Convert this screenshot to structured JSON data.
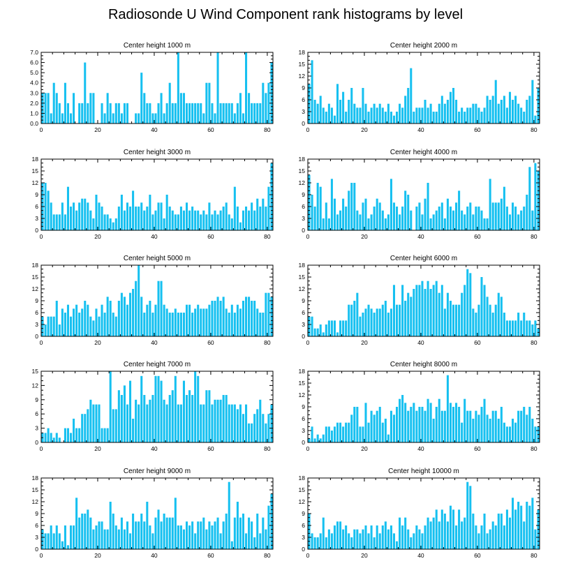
{
  "title": "Radiosonde U Wind Component rank histograms by level",
  "colors": {
    "bar": "#16c0f0",
    "axis": "#000000"
  },
  "chart_data": [
    {
      "type": "bar",
      "title": "Center height 1000 m",
      "xlim": [
        0,
        82
      ],
      "ylim": [
        0,
        7
      ],
      "xticks": [
        0,
        20,
        40,
        60,
        80
      ],
      "yticks": [
        0,
        1,
        2,
        3,
        4,
        5,
        6,
        7
      ],
      "ytick_labels": [
        "0.0",
        "1.0",
        "2.0",
        "3.0",
        "4.0",
        "5.0",
        "6.0",
        "7.0"
      ],
      "values": [
        3,
        3,
        3,
        1,
        4,
        3,
        2,
        1,
        4,
        2,
        1,
        3,
        0,
        2,
        2,
        6,
        2,
        3,
        3,
        0,
        0,
        2,
        1,
        3,
        2,
        1,
        2,
        2,
        1,
        2,
        2,
        0,
        0,
        1,
        1,
        5,
        3,
        2,
        2,
        1,
        1,
        2,
        3,
        1,
        2,
        4,
        2,
        2,
        7,
        3,
        3,
        2,
        2,
        2,
        2,
        2,
        2,
        1,
        4,
        4,
        2,
        1,
        7,
        2,
        2,
        2,
        2,
        2,
        1,
        2,
        3,
        1,
        7,
        3,
        2,
        2,
        2,
        2,
        4,
        3,
        4,
        6
      ]
    },
    {
      "type": "bar",
      "title": "Center height 2000 m",
      "xlim": [
        0,
        82
      ],
      "ylim": [
        0,
        18
      ],
      "xticks": [
        0,
        20,
        40,
        60,
        80
      ],
      "yticks": [
        0,
        3,
        6,
        9,
        12,
        15,
        18
      ],
      "ytick_labels": [
        "0",
        "3",
        "6",
        "9",
        "12",
        "15",
        "18"
      ],
      "values": [
        10,
        16,
        6,
        5,
        7,
        4,
        3,
        5,
        4,
        2,
        10,
        6,
        8,
        3,
        6,
        9,
        5,
        4,
        4,
        9,
        5,
        3,
        4,
        5,
        4,
        5,
        4,
        3,
        5,
        3,
        2,
        3,
        5,
        4,
        7,
        9,
        14,
        3,
        4,
        4,
        4,
        6,
        4,
        5,
        3,
        3,
        5,
        7,
        5,
        6,
        8,
        9,
        6,
        3,
        4,
        3,
        4,
        4,
        5,
        5,
        4,
        3,
        4,
        7,
        6,
        7,
        11,
        5,
        6,
        7,
        4,
        8,
        6,
        7,
        5,
        4,
        3,
        6,
        7,
        11,
        2,
        9
      ]
    },
    {
      "type": "bar",
      "title": "Center height 3000 m",
      "xlim": [
        0,
        82
      ],
      "ylim": [
        0,
        18
      ],
      "xticks": [
        0,
        20,
        40,
        60,
        80
      ],
      "yticks": [
        0,
        3,
        6,
        9,
        12,
        15,
        18
      ],
      "ytick_labels": [
        "0",
        "3",
        "6",
        "9",
        "12",
        "15",
        "18"
      ],
      "values": [
        12,
        12,
        10,
        7,
        4,
        4,
        4,
        7,
        4,
        11,
        6,
        7,
        5,
        7,
        8,
        8,
        7,
        5,
        3,
        9,
        7,
        6,
        4,
        4,
        3,
        2,
        3,
        6,
        9,
        5,
        7,
        6,
        10,
        6,
        6,
        7,
        5,
        6,
        9,
        4,
        5,
        7,
        7,
        3,
        9,
        6,
        5,
        4,
        4,
        6,
        5,
        7,
        5,
        6,
        5,
        5,
        4,
        5,
        4,
        7,
        4,
        5,
        4,
        5,
        6,
        7,
        4,
        3,
        11,
        6,
        2,
        5,
        6,
        5,
        7,
        5,
        8,
        6,
        8,
        6,
        11,
        17
      ]
    },
    {
      "type": "bar",
      "title": "Center height 4000 m",
      "xlim": [
        0,
        82
      ],
      "ylim": [
        0,
        18
      ],
      "xticks": [
        0,
        20,
        40,
        60,
        80
      ],
      "yticks": [
        0,
        3,
        6,
        9,
        12,
        15,
        18
      ],
      "ytick_labels": [
        "0",
        "3",
        "6",
        "9",
        "12",
        "15",
        "18"
      ],
      "values": [
        14,
        9,
        6,
        12,
        11,
        3,
        7,
        3,
        13,
        8,
        4,
        5,
        8,
        6,
        10,
        12,
        12,
        5,
        4,
        7,
        8,
        3,
        4,
        6,
        8,
        7,
        5,
        3,
        4,
        13,
        7,
        6,
        4,
        6,
        10,
        9,
        5,
        0,
        6,
        7,
        4,
        8,
        12,
        3,
        4,
        5,
        6,
        7,
        3,
        8,
        6,
        5,
        7,
        10,
        5,
        4,
        6,
        7,
        4,
        6,
        6,
        5,
        3,
        3,
        13,
        7,
        7,
        7,
        8,
        11,
        6,
        4,
        7,
        6,
        4,
        5,
        6,
        9,
        16,
        5,
        17,
        15
      ]
    },
    {
      "type": "bar",
      "title": "Center height 5000 m",
      "xlim": [
        0,
        82
      ],
      "ylim": [
        0,
        18
      ],
      "xticks": [
        0,
        20,
        40,
        60,
        80
      ],
      "yticks": [
        0,
        3,
        6,
        9,
        12,
        15,
        18
      ],
      "ytick_labels": [
        "0",
        "3",
        "6",
        "9",
        "12",
        "15",
        "18"
      ],
      "values": [
        5,
        3,
        5,
        5,
        5,
        9,
        3,
        7,
        6,
        8,
        5,
        7,
        8,
        6,
        7,
        9,
        8,
        5,
        4,
        7,
        5,
        8,
        6,
        10,
        9,
        6,
        5,
        9,
        11,
        10,
        8,
        11,
        12,
        14,
        18,
        10,
        6,
        8,
        9,
        6,
        8,
        14,
        14,
        8,
        7,
        6,
        6,
        7,
        6,
        6,
        6,
        8,
        8,
        6,
        7,
        8,
        7,
        7,
        7,
        8,
        9,
        9,
        10,
        9,
        10,
        7,
        6,
        8,
        6,
        8,
        7,
        9,
        10,
        10,
        9,
        9,
        7,
        6,
        6,
        11,
        11,
        10
      ]
    },
    {
      "type": "bar",
      "title": "Center height 6000 m",
      "xlim": [
        0,
        82
      ],
      "ylim": [
        0,
        18
      ],
      "xticks": [
        0,
        20,
        40,
        60,
        80
      ],
      "yticks": [
        0,
        3,
        6,
        9,
        12,
        15,
        18
      ],
      "ytick_labels": [
        "0",
        "3",
        "6",
        "9",
        "12",
        "15",
        "18"
      ],
      "values": [
        5,
        5,
        2,
        2,
        3,
        1,
        3,
        4,
        4,
        4,
        1,
        4,
        4,
        4,
        8,
        8,
        9,
        11,
        5,
        6,
        7,
        8,
        7,
        6,
        7,
        7,
        8,
        9,
        6,
        7,
        13,
        8,
        8,
        13,
        9,
        11,
        10,
        12,
        13,
        13,
        14,
        12,
        14,
        12,
        13,
        14,
        11,
        13,
        7,
        11,
        9,
        8,
        8,
        8,
        11,
        13,
        17,
        16,
        7,
        6,
        8,
        15,
        13,
        10,
        8,
        6,
        8,
        11,
        10,
        6,
        4,
        4,
        4,
        4,
        6,
        4,
        6,
        4,
        4,
        3,
        4,
        2
      ]
    },
    {
      "type": "bar",
      "title": "Center height 7000 m",
      "xlim": [
        0,
        82
      ],
      "ylim": [
        0,
        15
      ],
      "xticks": [
        0,
        20,
        40,
        60,
        80
      ],
      "yticks": [
        0,
        3,
        6,
        9,
        12,
        15
      ],
      "ytick_labels": [
        "0",
        "3",
        "6",
        "9",
        "12",
        "15"
      ],
      "values": [
        2,
        2,
        3,
        2,
        1,
        2,
        1,
        0,
        3,
        3,
        2,
        5,
        3,
        3,
        6,
        6,
        7,
        9,
        8,
        8,
        8,
        3,
        3,
        3,
        15,
        7,
        7,
        11,
        10,
        12,
        8,
        13,
        5,
        9,
        8,
        14,
        10,
        8,
        9,
        10,
        14,
        14,
        13,
        9,
        8,
        10,
        11,
        14,
        8,
        8,
        13,
        10,
        11,
        10,
        15,
        14,
        8,
        8,
        11,
        11,
        8,
        9,
        9,
        9,
        10,
        10,
        8,
        8,
        8,
        7,
        8,
        6,
        8,
        4,
        4,
        6,
        7,
        9,
        6,
        4,
        6,
        8
      ]
    },
    {
      "type": "bar",
      "title": "Center height 8000 m",
      "xlim": [
        0,
        82
      ],
      "ylim": [
        0,
        18
      ],
      "xticks": [
        0,
        20,
        40,
        60,
        80
      ],
      "yticks": [
        0,
        3,
        6,
        9,
        12,
        15,
        18
      ],
      "ytick_labels": [
        "0",
        "3",
        "6",
        "9",
        "12",
        "15",
        "18"
      ],
      "values": [
        1,
        4,
        1,
        2,
        1,
        2,
        4,
        4,
        3,
        4,
        5,
        5,
        4,
        5,
        5,
        7,
        9,
        9,
        4,
        4,
        10,
        5,
        8,
        7,
        8,
        9,
        5,
        6,
        2,
        8,
        7,
        9,
        11,
        12,
        10,
        8,
        9,
        10,
        8,
        9,
        9,
        8,
        11,
        10,
        6,
        9,
        11,
        8,
        8,
        17,
        10,
        9,
        10,
        9,
        5,
        11,
        8,
        8,
        6,
        8,
        7,
        9,
        11,
        7,
        6,
        8,
        8,
        6,
        9,
        5,
        4,
        4,
        6,
        5,
        8,
        8,
        9,
        7,
        9,
        6,
        4,
        4
      ]
    },
    {
      "type": "bar",
      "title": "Center height 9000 m",
      "xlim": [
        0,
        82
      ],
      "ylim": [
        0,
        18
      ],
      "xticks": [
        0,
        20,
        40,
        60,
        80
      ],
      "yticks": [
        0,
        3,
        6,
        9,
        12,
        15,
        18
      ],
      "ytick_labels": [
        "0",
        "3",
        "6",
        "9",
        "12",
        "15",
        "18"
      ],
      "values": [
        5,
        4,
        4,
        6,
        4,
        6,
        4,
        2,
        6,
        1,
        6,
        6,
        13,
        8,
        9,
        9,
        10,
        8,
        5,
        6,
        7,
        7,
        5,
        5,
        12,
        9,
        6,
        5,
        8,
        5,
        7,
        4,
        9,
        7,
        7,
        9,
        7,
        12,
        6,
        4,
        8,
        10,
        7,
        9,
        8,
        8,
        8,
        13,
        6,
        6,
        5,
        7,
        6,
        7,
        4,
        7,
        7,
        8,
        5,
        7,
        6,
        7,
        8,
        4,
        7,
        9,
        17,
        2,
        8,
        12,
        8,
        9,
        4,
        8,
        7,
        3,
        9,
        4,
        8,
        5,
        11,
        14
      ]
    },
    {
      "type": "bar",
      "title": "Center height 10000 m",
      "xlim": [
        0,
        82
      ],
      "ylim": [
        0,
        18
      ],
      "xticks": [
        0,
        20,
        40,
        60,
        80
      ],
      "yticks": [
        0,
        3,
        6,
        9,
        12,
        15,
        18
      ],
      "ytick_labels": [
        "0",
        "3",
        "6",
        "9",
        "12",
        "15",
        "18"
      ],
      "values": [
        9,
        4,
        3,
        3,
        4,
        8,
        3,
        5,
        4,
        6,
        7,
        7,
        5,
        6,
        4,
        3,
        5,
        5,
        4,
        5,
        6,
        4,
        6,
        3,
        6,
        4,
        6,
        7,
        5,
        6,
        4,
        2,
        8,
        6,
        8,
        5,
        3,
        4,
        6,
        5,
        4,
        6,
        8,
        7,
        8,
        10,
        7,
        10,
        9,
        7,
        11,
        10,
        6,
        10,
        7,
        8,
        17,
        16,
        9,
        6,
        4,
        6,
        9,
        4,
        5,
        7,
        6,
        9,
        9,
        6,
        10,
        8,
        13,
        10,
        12,
        11,
        7,
        12,
        11,
        13,
        5,
        10
      ]
    }
  ]
}
